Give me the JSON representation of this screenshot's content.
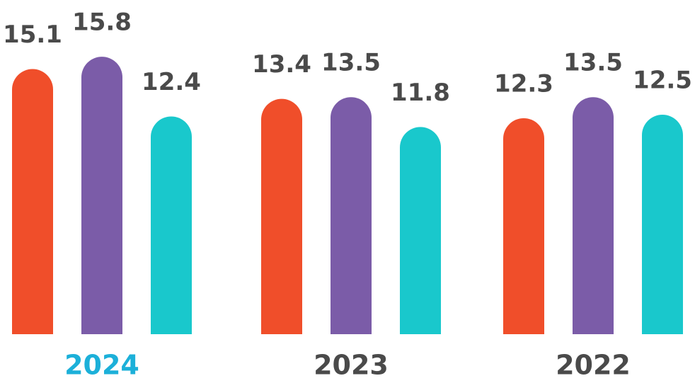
{
  "chart_data": {
    "type": "bar",
    "categories": [
      "2024",
      "2023",
      "2022"
    ],
    "category_label_colors": [
      "#1cb0d9",
      "#4a4a4a",
      "#4a4a4a"
    ],
    "series": [
      {
        "color": "#f04e2a",
        "values": [
          15.1,
          13.4,
          12.3
        ]
      },
      {
        "color": "#7b5ca8",
        "values": [
          15.8,
          13.5,
          13.5
        ]
      },
      {
        "color": "#19c8cc",
        "values": [
          12.4,
          11.8,
          12.5
        ]
      }
    ],
    "value_label_color": "#4a4a4a"
  }
}
